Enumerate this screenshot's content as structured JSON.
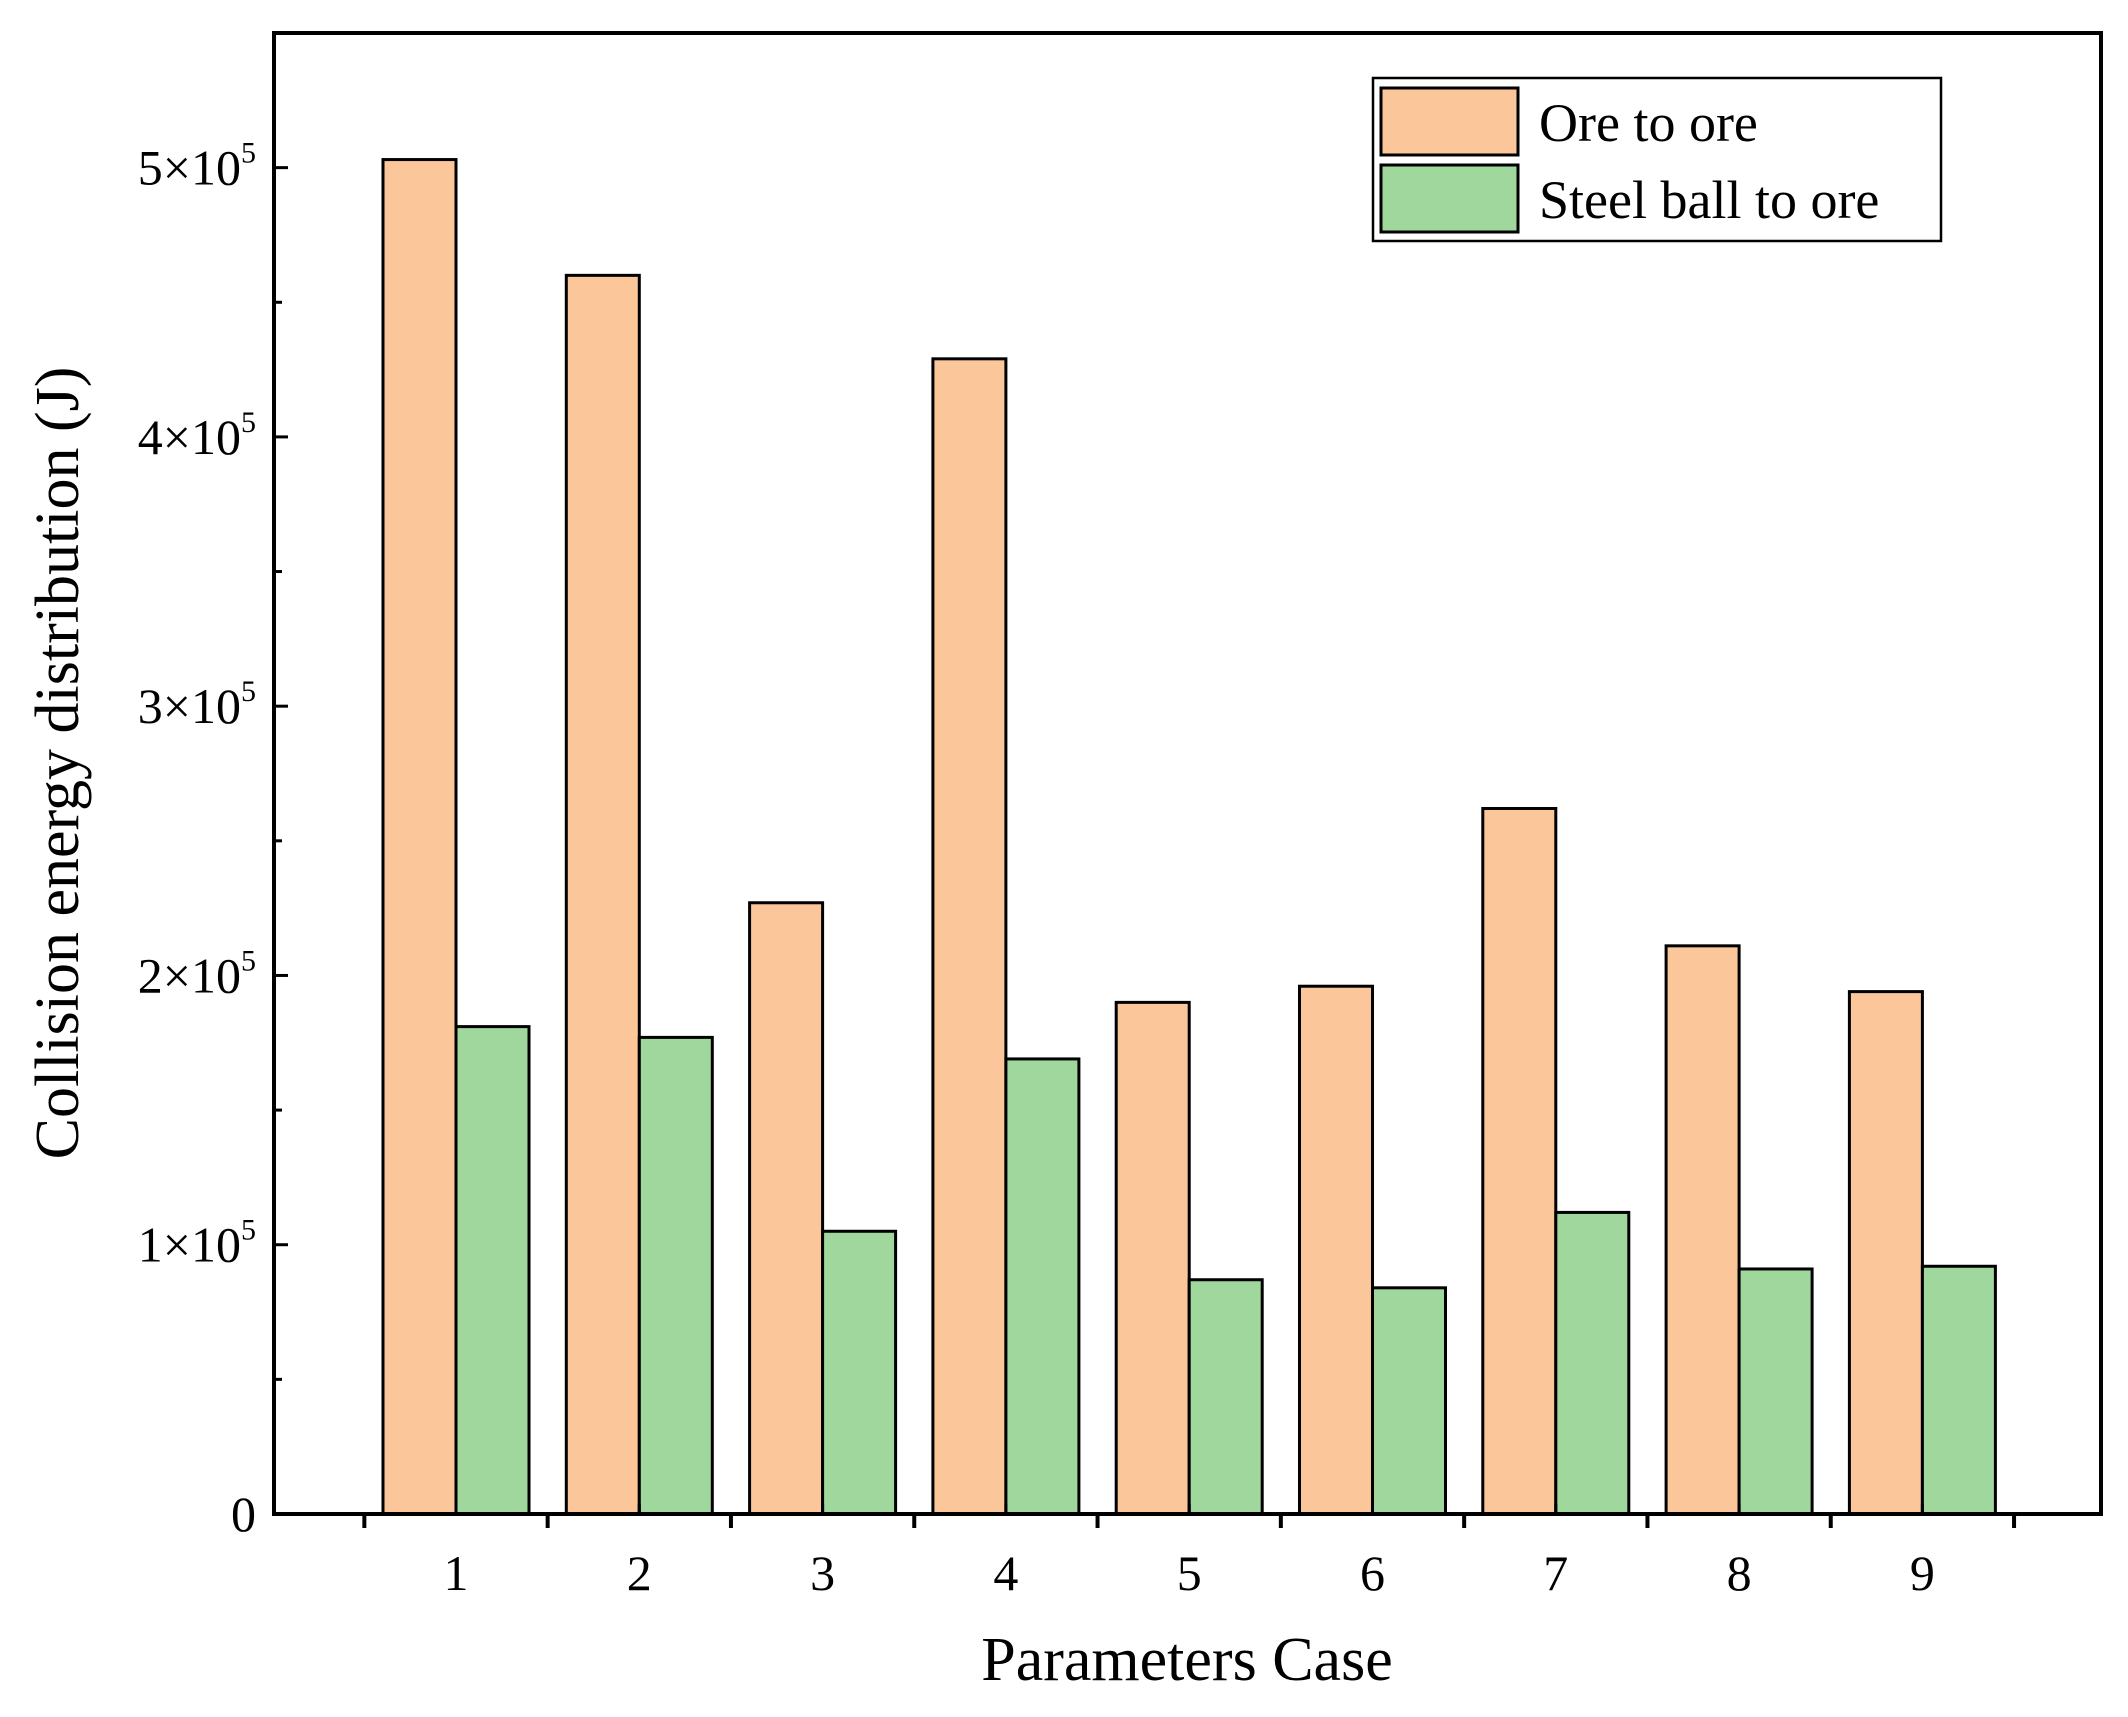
{
  "chart_data": {
    "type": "bar",
    "categories": [
      "1",
      "2",
      "3",
      "4",
      "5",
      "6",
      "7",
      "8",
      "9"
    ],
    "series": [
      {
        "name": "Ore to ore",
        "color": "#fbc699",
        "values": [
          503000,
          460000,
          227000,
          429000,
          190000,
          196000,
          262000,
          211000,
          194000
        ]
      },
      {
        "name": "Steel ball to ore",
        "color": "#9fd79d",
        "values": [
          181000,
          177000,
          105000,
          169000,
          87000,
          84000,
          112000,
          91000,
          92000
        ]
      }
    ],
    "xlabel": "Parameters Case",
    "ylabel": "Collision energy distribution (J)",
    "ylim": [
      0,
      550000
    ],
    "yticks": [
      {
        "value": 0,
        "label": "0"
      },
      {
        "value": 100000,
        "mantissa": "1",
        "times": "×",
        "base": "10",
        "exp": "5"
      },
      {
        "value": 200000,
        "mantissa": "2",
        "times": "×",
        "base": "10",
        "exp": "5"
      },
      {
        "value": 300000,
        "mantissa": "3",
        "times": "×",
        "base": "10",
        "exp": "5"
      },
      {
        "value": 400000,
        "mantissa": "4",
        "times": "×",
        "base": "10",
        "exp": "5"
      },
      {
        "value": 500000,
        "mantissa": "5",
        "times": "×",
        "base": "10",
        "exp": "5"
      }
    ],
    "yminor_step": 50000,
    "legend_position": "top-right",
    "grid": false
  }
}
